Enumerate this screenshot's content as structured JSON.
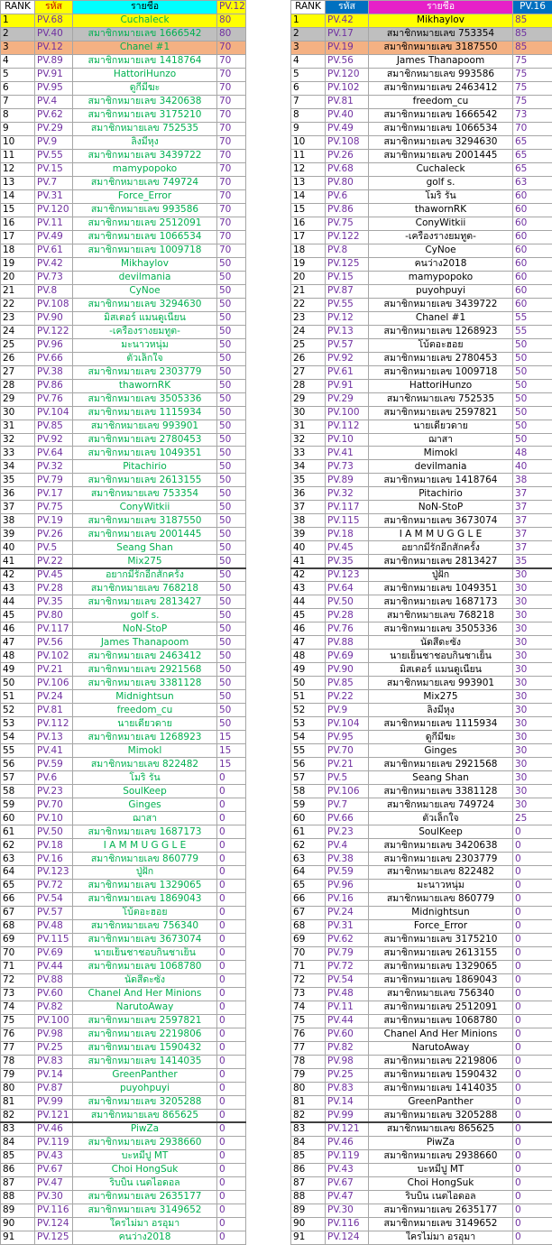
{
  "left": {
    "header": [
      "RANK",
      "รหัส",
      "รายชื่อ",
      "PV.12"
    ],
    "rows": [
      [
        1,
        "PV.68",
        "Cuchaleck",
        80
      ],
      [
        2,
        "PV.40",
        "สมาชิกหมายเลข 1666542",
        80
      ],
      [
        3,
        "PV.12",
        "Chanel #1",
        70
      ],
      [
        4,
        "PV.89",
        "สมาชิกหมายเลข 1418764",
        70
      ],
      [
        5,
        "PV.91",
        "HattoriHunzo",
        70
      ],
      [
        6,
        "PV.95",
        "ดูกีมีฆะ",
        70
      ],
      [
        7,
        "PV.4",
        "สมาชิกหมายเลข 3420638",
        70
      ],
      [
        8,
        "PV.62",
        "สมาชิกหมายเลข 3175210",
        70
      ],
      [
        9,
        "PV.29",
        "สมาชิกหมายเลข 752535",
        70
      ],
      [
        10,
        "PV.9",
        "ลิงมีหุง",
        70
      ],
      [
        11,
        "PV.55",
        "สมาชิกหมายเลข 3439722",
        70
      ],
      [
        12,
        "PV.15",
        "mamypopoko",
        70
      ],
      [
        13,
        "PV.7",
        "สมาชิกหมายเลข 749724",
        70
      ],
      [
        14,
        "PV.31",
        "Force_Error",
        70
      ],
      [
        15,
        "PV.120",
        "สมาชิกหมายเลข 993586",
        70
      ],
      [
        16,
        "PV.11",
        "สมาชิกหมายเลข 2512091",
        70
      ],
      [
        17,
        "PV.49",
        "สมาชิกหมายเลข 1066534",
        70
      ],
      [
        18,
        "PV.61",
        "สมาชิกหมายเลข 1009718",
        70
      ],
      [
        19,
        "PV.42",
        "Mikhaylov",
        50
      ],
      [
        20,
        "PV.73",
        "devilmania",
        50
      ],
      [
        21,
        "PV.8",
        "CyNoe",
        50
      ],
      [
        22,
        "PV.108",
        "สมาชิกหมายเลข 3294630",
        50
      ],
      [
        23,
        "PV.90",
        "มิสเตอร์ แมนดูเนียน",
        50
      ],
      [
        24,
        "PV.122",
        "-เครื่องรางยมทูต-",
        50
      ],
      [
        25,
        "PV.96",
        "มะนาวหนุ่ม",
        50
      ],
      [
        26,
        "PV.66",
        "ตัวเล็กใจ",
        50
      ],
      [
        27,
        "PV.38",
        "สมาชิกหมายเลข 2303779",
        50
      ],
      [
        28,
        "PV.86",
        "thawornRK",
        50
      ],
      [
        29,
        "PV.76",
        "สมาชิกหมายเลข 3505336",
        50
      ],
      [
        30,
        "PV.104",
        "สมาชิกหมายเลข 1115934",
        50
      ],
      [
        31,
        "PV.85",
        "สมาชิกหมายเลข 993901",
        50
      ],
      [
        32,
        "PV.92",
        "สมาชิกหมายเลข 2780453",
        50
      ],
      [
        33,
        "PV.64",
        "สมาชิกหมายเลข 1049351",
        50
      ],
      [
        34,
        "PV.32",
        "Pitachirio",
        50
      ],
      [
        35,
        "PV.79",
        "สมาชิกหมายเลข 2613155",
        50
      ],
      [
        36,
        "PV.17",
        "สมาชิกหมายเลข 753354",
        50
      ],
      [
        37,
        "PV.75",
        "ConyWitkii",
        50
      ],
      [
        38,
        "PV.19",
        "สมาชิกหมายเลข 3187550",
        50
      ],
      [
        39,
        "PV.26",
        "สมาชิกหมายเลข 2001445",
        50
      ],
      [
        40,
        "PV.5",
        "Seang Shan",
        50
      ],
      [
        41,
        "PV.22",
        "Mix275",
        50
      ],
      [
        42,
        "PV.45",
        "อยากมีรักอีกสักครั้ง",
        50
      ],
      [
        43,
        "PV.28",
        "สมาชิกหมายเลข 768218",
        50
      ],
      [
        44,
        "PV.35",
        "สมาชิกหมายเลข 2813427",
        50
      ],
      [
        45,
        "PV.80",
        "golf s.",
        50
      ],
      [
        46,
        "PV.117",
        "NoN-StoP",
        50
      ],
      [
        47,
        "PV.56",
        "James Thanapoom",
        50
      ],
      [
        48,
        "PV.102",
        "สมาชิกหมายเลข 2463412",
        50
      ],
      [
        49,
        "PV.21",
        "สมาชิกหมายเลข 2921568",
        50
      ],
      [
        50,
        "PV.106",
        "สมาชิกหมายเลข 3381128",
        50
      ],
      [
        51,
        "PV.24",
        "Midnightsun",
        50
      ],
      [
        52,
        "PV.81",
        "freedom_cu",
        50
      ],
      [
        53,
        "PV.112",
        "นายเดียวดาย",
        50
      ],
      [
        54,
        "PV.13",
        "สมาชิกหมายเลข 1268923",
        15
      ],
      [
        55,
        "PV.41",
        "Mimokl",
        15
      ],
      [
        56,
        "PV.59",
        "สมาชิกหมายเลข 822482",
        15
      ],
      [
        57,
        "PV.6",
        "โมริ รัน",
        0
      ],
      [
        58,
        "PV.23",
        "SoulKeep",
        0
      ],
      [
        59,
        "PV.70",
        "Ginges",
        0
      ],
      [
        60,
        "PV.10",
        "ฌาสา",
        0
      ],
      [
        61,
        "PV.50",
        "สมาชิกหมายเลข 1687173",
        0
      ],
      [
        62,
        "PV.18",
        "I A M M U G G L E",
        0
      ],
      [
        63,
        "PV.16",
        "สมาชิกหมายเลข 860779",
        0
      ],
      [
        64,
        "PV.123",
        "ปู่ฝัก",
        0
      ],
      [
        65,
        "PV.72",
        "สมาชิกหมายเลข 1329065",
        0
      ],
      [
        66,
        "PV.54",
        "สมาชิกหมายเลข 1869043",
        0
      ],
      [
        67,
        "PV.57",
        "โบ้ตอะฮอย",
        0
      ],
      [
        68,
        "PV.48",
        "สมาชิกหมายเลข 756340",
        0
      ],
      [
        69,
        "PV.115",
        "สมาชิกหมายเลข 3673074",
        0
      ],
      [
        70,
        "PV.69",
        "นายเย็นชาชอบกินชาเย็น",
        0
      ],
      [
        71,
        "PV.44",
        "สมาชิกหมายเลข 1068780",
        0
      ],
      [
        72,
        "PV.88",
        "นัดสีดะซัง",
        0
      ],
      [
        73,
        "PV.60",
        "Chanel And Her Minions",
        0
      ],
      [
        74,
        "PV.82",
        "NarutoAway",
        0
      ],
      [
        75,
        "PV.100",
        "สมาชิกหมายเลข 2597821",
        0
      ],
      [
        76,
        "PV.98",
        "สมาชิกหมายเลข 2219806",
        0
      ],
      [
        77,
        "PV.25",
        "สมาชิกหมายเลข 1590432",
        0
      ],
      [
        78,
        "PV.83",
        "สมาชิกหมายเลข 1414035",
        0
      ],
      [
        79,
        "PV.14",
        "GreenPanther",
        0
      ],
      [
        80,
        "PV.87",
        "puyohpuyi",
        0
      ],
      [
        81,
        "PV.99",
        "สมาชิกหมายเลข 3205288",
        0
      ],
      [
        82,
        "PV.121",
        "สมาชิกหมายเลข 865625",
        0
      ],
      [
        83,
        "PV.46",
        "PiwZa",
        0
      ],
      [
        84,
        "PV.119",
        "สมาชิกหมายเลข 2938660",
        0
      ],
      [
        85,
        "PV.43",
        "บะหมี่ปู MT",
        0
      ],
      [
        86,
        "PV.67",
        "Choi HongSuk",
        0
      ],
      [
        87,
        "PV.47",
        "ริบบิ้น เนตไอดอล",
        0
      ],
      [
        88,
        "PV.30",
        "สมาชิกหมายเลข 2635177",
        0
      ],
      [
        89,
        "PV.116",
        "สมาชิกหมายเลข 3149652",
        0
      ],
      [
        90,
        "PV.124",
        "ใครไม่มา อรอุมา",
        0
      ],
      [
        91,
        "PV.125",
        "คนว่าง2018",
        0
      ]
    ]
  },
  "right": {
    "header": [
      "RANK",
      "รหัส",
      "รายชื่อ",
      "PV.16"
    ],
    "rows": [
      [
        1,
        "PV.42",
        "Mikhaylov",
        85
      ],
      [
        2,
        "PV.17",
        "สมาชิกหมายเลข 753354",
        85
      ],
      [
        3,
        "PV.19",
        "สมาชิกหมายเลข 3187550",
        85
      ],
      [
        4,
        "PV.56",
        "James Thanapoom",
        75
      ],
      [
        5,
        "PV.120",
        "สมาชิกหมายเลข 993586",
        75
      ],
      [
        6,
        "PV.102",
        "สมาชิกหมายเลข 2463412",
        75
      ],
      [
        7,
        "PV.81",
        "freedom_cu",
        75
      ],
      [
        8,
        "PV.40",
        "สมาชิกหมายเลข 1666542",
        73
      ],
      [
        9,
        "PV.49",
        "สมาชิกหมายเลข 1066534",
        70
      ],
      [
        10,
        "PV.108",
        "สมาชิกหมายเลข 3294630",
        65
      ],
      [
        11,
        "PV.26",
        "สมาชิกหมายเลข 2001445",
        65
      ],
      [
        12,
        "PV.68",
        "Cuchaleck",
        65
      ],
      [
        13,
        "PV.80",
        "golf s.",
        63
      ],
      [
        14,
        "PV.6",
        "โมริ รัน",
        60
      ],
      [
        15,
        "PV.86",
        "thawornRK",
        60
      ],
      [
        16,
        "PV.75",
        "ConyWitkii",
        60
      ],
      [
        17,
        "PV.122",
        "-เครื่องรางยมทูต-",
        60
      ],
      [
        18,
        "PV.8",
        "CyNoe",
        60
      ],
      [
        19,
        "PV.125",
        "คนว่าง2018",
        60
      ],
      [
        20,
        "PV.15",
        "mamypopoko",
        60
      ],
      [
        21,
        "PV.87",
        "puyohpuyi",
        60
      ],
      [
        22,
        "PV.55",
        "สมาชิกหมายเลข 3439722",
        60
      ],
      [
        23,
        "PV.12",
        "Chanel #1",
        55
      ],
      [
        24,
        "PV.13",
        "สมาชิกหมายเลข 1268923",
        55
      ],
      [
        25,
        "PV.57",
        "โบ้ตอะฮอย",
        50
      ],
      [
        26,
        "PV.92",
        "สมาชิกหมายเลข 2780453",
        50
      ],
      [
        27,
        "PV.61",
        "สมาชิกหมายเลข 1009718",
        50
      ],
      [
        28,
        "PV.91",
        "HattoriHunzo",
        50
      ],
      [
        29,
        "PV.29",
        "สมาชิกหมายเลข 752535",
        50
      ],
      [
        30,
        "PV.100",
        "สมาชิกหมายเลข 2597821",
        50
      ],
      [
        31,
        "PV.112",
        "นายเดียวดาย",
        50
      ],
      [
        32,
        "PV.10",
        "ฌาสา",
        50
      ],
      [
        33,
        "PV.41",
        "Mimokl",
        48
      ],
      [
        34,
        "PV.73",
        "devilmania",
        40
      ],
      [
        35,
        "PV.89",
        "สมาชิกหมายเลข 1418764",
        38
      ],
      [
        36,
        "PV.32",
        "Pitachirio",
        37
      ],
      [
        37,
        "PV.117",
        "NoN-StoP",
        37
      ],
      [
        38,
        "PV.115",
        "สมาชิกหมายเลข 3673074",
        37
      ],
      [
        39,
        "PV.18",
        "I A M M U G G L E",
        37
      ],
      [
        40,
        "PV.45",
        "อยากมีรักอีกสักครั้ง",
        37
      ],
      [
        41,
        "PV.35",
        "สมาชิกหมายเลข 2813427",
        35
      ],
      [
        42,
        "PV.123",
        "ปู่ฝัก",
        30
      ],
      [
        43,
        "PV.64",
        "สมาชิกหมายเลข 1049351",
        30
      ],
      [
        44,
        "PV.50",
        "สมาชิกหมายเลข 1687173",
        30
      ],
      [
        45,
        "PV.28",
        "สมาชิกหมายเลข 768218",
        30
      ],
      [
        46,
        "PV.76",
        "สมาชิกหมายเลข 3505336",
        30
      ],
      [
        47,
        "PV.88",
        "นัดสีดะซัง",
        30
      ],
      [
        48,
        "PV.69",
        "นายเย็นชาชอบกินชาเย็น",
        30
      ],
      [
        49,
        "PV.90",
        "มิสเตอร์ แมนดูเนียน",
        30
      ],
      [
        50,
        "PV.85",
        "สมาชิกหมายเลข 993901",
        30
      ],
      [
        51,
        "PV.22",
        "Mix275",
        30
      ],
      [
        52,
        "PV.9",
        "ลิงมีหุง",
        30
      ],
      [
        53,
        "PV.104",
        "สมาชิกหมายเลข 1115934",
        30
      ],
      [
        54,
        "PV.95",
        "ดูกีมีฆะ",
        30
      ],
      [
        55,
        "PV.70",
        "Ginges",
        30
      ],
      [
        56,
        "PV.21",
        "สมาชิกหมายเลข 2921568",
        30
      ],
      [
        57,
        "PV.5",
        "Seang Shan",
        30
      ],
      [
        58,
        "PV.106",
        "สมาชิกหมายเลข 3381128",
        30
      ],
      [
        59,
        "PV.7",
        "สมาชิกหมายเลข 749724",
        30
      ],
      [
        60,
        "PV.66",
        "ตัวเล็กใจ",
        25
      ],
      [
        61,
        "PV.23",
        "SoulKeep",
        0
      ],
      [
        62,
        "PV.4",
        "สมาชิกหมายเลข 3420638",
        0
      ],
      [
        63,
        "PV.38",
        "สมาชิกหมายเลข 2303779",
        0
      ],
      [
        64,
        "PV.59",
        "สมาชิกหมายเลข 822482",
        0
      ],
      [
        65,
        "PV.96",
        "มะนาวหนุ่ม",
        0
      ],
      [
        66,
        "PV.16",
        "สมาชิกหมายเลข 860779",
        0
      ],
      [
        67,
        "PV.24",
        "Midnightsun",
        0
      ],
      [
        68,
        "PV.31",
        "Force_Error",
        0
      ],
      [
        69,
        "PV.62",
        "สมาชิกหมายเลข 3175210",
        0
      ],
      [
        70,
        "PV.79",
        "สมาชิกหมายเลข 2613155",
        0
      ],
      [
        71,
        "PV.72",
        "สมาชิกหมายเลข 1329065",
        0
      ],
      [
        72,
        "PV.54",
        "สมาชิกหมายเลข 1869043",
        0
      ],
      [
        73,
        "PV.48",
        "สมาชิกหมายเลข 756340",
        0
      ],
      [
        74,
        "PV.11",
        "สมาชิกหมายเลข 2512091",
        0
      ],
      [
        75,
        "PV.44",
        "สมาชิกหมายเลข 1068780",
        0
      ],
      [
        76,
        "PV.60",
        "Chanel And Her Minions",
        0
      ],
      [
        77,
        "PV.82",
        "NarutoAway",
        0
      ],
      [
        78,
        "PV.98",
        "สมาชิกหมายเลข 2219806",
        0
      ],
      [
        79,
        "PV.25",
        "สมาชิกหมายเลข 1590432",
        0
      ],
      [
        80,
        "PV.83",
        "สมาชิกหมายเลข 1414035",
        0
      ],
      [
        81,
        "PV.14",
        "GreenPanther",
        0
      ],
      [
        82,
        "PV.99",
        "สมาชิกหมายเลข 3205288",
        0
      ],
      [
        83,
        "PV.121",
        "สมาชิกหมายเลข 865625",
        0
      ],
      [
        84,
        "PV.46",
        "PiwZa",
        0
      ],
      [
        85,
        "PV.119",
        "สมาชิกหมายเลข 2938660",
        0
      ],
      [
        86,
        "PV.43",
        "บะหมี่ปู MT",
        0
      ],
      [
        87,
        "PV.67",
        "Choi HongSuk",
        0
      ],
      [
        88,
        "PV.47",
        "ริบบิ้น เนตไอดอล",
        0
      ],
      [
        89,
        "PV.30",
        "สมาชิกหมายเลข 2635177",
        0
      ],
      [
        90,
        "PV.116",
        "สมาชิกหมายเลข 3149652",
        0
      ],
      [
        91,
        "PV.124",
        "ใครไม่มา อรอุมา",
        0
      ]
    ]
  }
}
